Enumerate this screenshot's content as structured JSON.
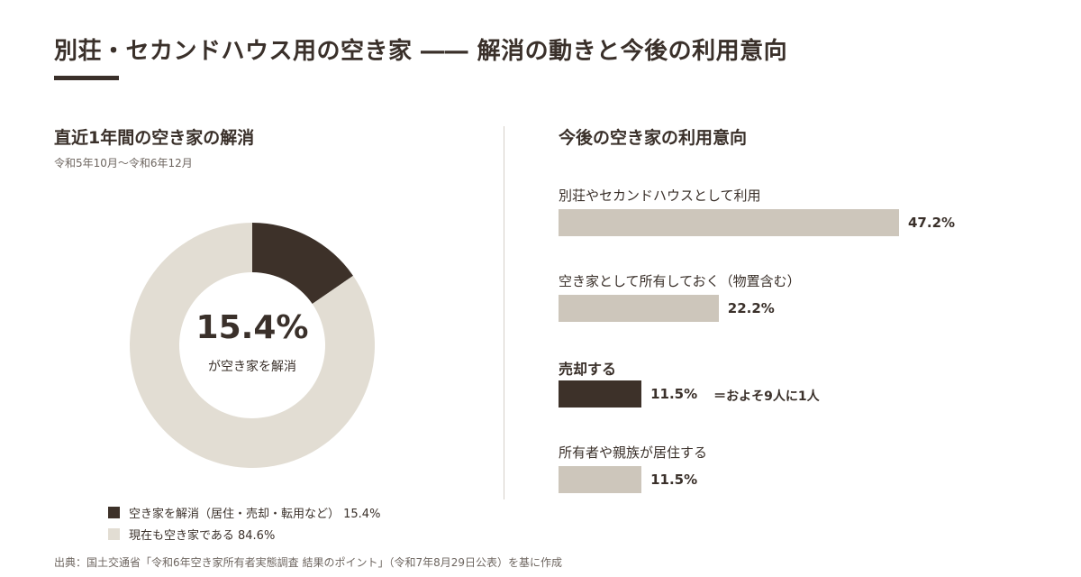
{
  "header": {
    "title": "別荘・セカンドハウス用の空き家 ―― 解消の動きと今後の利用意向"
  },
  "left_panel": {
    "title": "直近1年間の空き家の解消",
    "subtitle": "令和5年10月～令和6年12月",
    "center_value": "15.4%",
    "center_label": "が空き家を解消",
    "legend": [
      {
        "label": "空き家を解消（居住・売却・転用など） 15.4%",
        "color": "#3d3129"
      },
      {
        "label": "現在も空き家である 84.6%",
        "color": "#e2ddd3"
      }
    ]
  },
  "right_panel": {
    "title": "今後の空き家の利用意向",
    "note": "＝およそ9人に1人"
  },
  "footer": {
    "source": "出典：国土交通省「令和6年空き家所有者実態調査 結果のポイント」（令和7年8月29日公表）を基に作成"
  },
  "colors": {
    "dark": "#3d3129",
    "light_bar": "#cdc6bb",
    "light_ring": "#e2ddd3",
    "text": "#3a302a"
  },
  "chart_data": [
    {
      "type": "pie",
      "title": "直近1年間の空き家の解消",
      "categories": [
        "空き家を解消（居住・売却・転用など）",
        "現在も空き家である"
      ],
      "values": [
        15.4,
        84.6
      ],
      "unit": "%"
    },
    {
      "type": "bar",
      "title": "今後の空き家の利用意向",
      "categories": [
        "別荘やセカンドハウスとして利用",
        "空き家として所有しておく（物置含む）",
        "売却する",
        "所有者や親族が居住する"
      ],
      "values": [
        47.2,
        22.2,
        11.5,
        11.5
      ],
      "value_labels": [
        "47.2%",
        "22.2%",
        "11.5%",
        "11.5%"
      ],
      "highlight": [
        false,
        false,
        true,
        false
      ],
      "unit": "%"
    }
  ]
}
